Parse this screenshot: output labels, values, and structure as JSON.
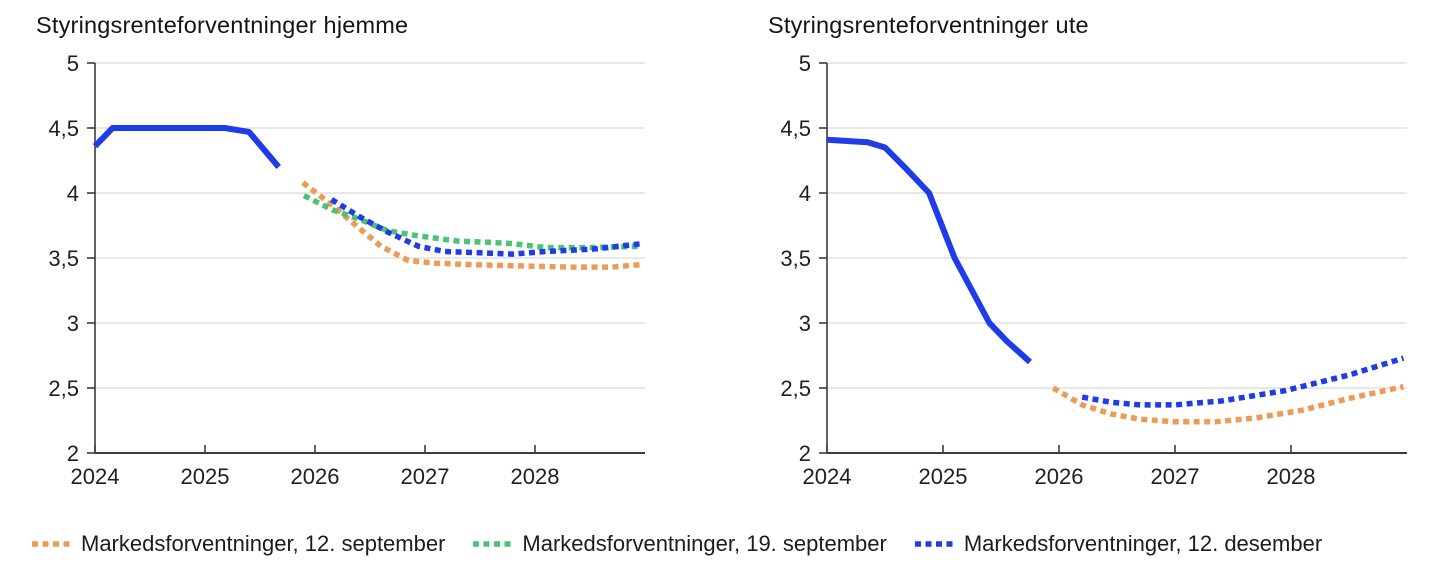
{
  "page": {
    "background": "#ffffff"
  },
  "colors": {
    "blue": "#1e3ce8",
    "orange": "#ec9c56",
    "green": "#4ac378",
    "grid": "#d9d9d9",
    "axis": "#3c3c3c",
    "text": "#1f1f1f"
  },
  "legend": {
    "items": [
      {
        "label": "Markedsforventninger, 12. september",
        "color": "#ec9c56",
        "style": "dotted"
      },
      {
        "label": "Markedsforventninger, 19. september",
        "color": "#4ac378",
        "style": "dotted"
      },
      {
        "label": "Markedsforventninger, 12. desember",
        "color": "#1e3ce8",
        "style": "dotted"
      }
    ]
  },
  "chart_data": [
    {
      "type": "line",
      "title": "Styringsrenteforventninger hjemme",
      "xlabel": "",
      "ylabel": "",
      "xlim": [
        2024,
        2029
      ],
      "ylim": [
        2,
        5
      ],
      "grid": "horizontal",
      "legend_position": "bottom",
      "x_ticks": [
        {
          "value": 2024,
          "label": "2024"
        },
        {
          "value": 2025,
          "label": "2025"
        },
        {
          "value": 2026,
          "label": "2026"
        },
        {
          "value": 2027,
          "label": "2027"
        },
        {
          "value": 2028,
          "label": "2028"
        }
      ],
      "y_ticks": [
        {
          "value": 2,
          "label": "2"
        },
        {
          "value": 2.5,
          "label": "2,5"
        },
        {
          "value": 3,
          "label": "3"
        },
        {
          "value": 3.5,
          "label": "3,5"
        },
        {
          "value": 4,
          "label": "4"
        },
        {
          "value": 4.5,
          "label": "4,5"
        },
        {
          "value": 5,
          "label": "5"
        }
      ],
      "series": [
        {
          "id": "markedsforventninger-12-september",
          "legend_label": "Markedsforventninger, 12. september",
          "color": "#ec9c56",
          "style": "dotted",
          "points": [
            [
              2025.89,
              4.08
            ],
            [
              2026.15,
              3.91
            ],
            [
              2026.36,
              3.76
            ],
            [
              2026.6,
              3.59
            ],
            [
              2026.85,
              3.48
            ],
            [
              2027.1,
              3.46
            ],
            [
              2027.4,
              3.45
            ],
            [
              2027.8,
              3.44
            ],
            [
              2028.3,
              3.43
            ],
            [
              2028.7,
              3.43
            ],
            [
              2028.97,
              3.45
            ]
          ]
        },
        {
          "id": "markedsforventninger-19-september",
          "legend_label": "Markedsforventninger, 19. september",
          "color": "#4ac378",
          "style": "dotted",
          "points": [
            [
              2025.9,
              3.98
            ],
            [
              2026.16,
              3.87
            ],
            [
              2026.4,
              3.8
            ],
            [
              2026.66,
              3.71
            ],
            [
              2026.94,
              3.67
            ],
            [
              2027.3,
              3.63
            ],
            [
              2027.6,
              3.62
            ],
            [
              2027.8,
              3.61
            ],
            [
              2028.1,
              3.58
            ],
            [
              2028.45,
              3.58
            ],
            [
              2028.97,
              3.59
            ]
          ]
        },
        {
          "id": "markedsforventninger-12-desember",
          "legend_label": "Markedsforventninger, 12. desember",
          "color": "#1e3ce8",
          "style": "dotted",
          "points": [
            [
              2026.15,
              3.95
            ],
            [
              2026.4,
              3.82
            ],
            [
              2026.66,
              3.7
            ],
            [
              2026.94,
              3.59
            ],
            [
              2027.18,
              3.55
            ],
            [
              2027.5,
              3.54
            ],
            [
              2027.8,
              3.53
            ],
            [
              2028.1,
              3.55
            ],
            [
              2028.55,
              3.57
            ],
            [
              2028.97,
              3.61
            ]
          ]
        },
        {
          "id": "solid-line",
          "legend_label": null,
          "color": "#1e3ce8",
          "style": "solid",
          "points": [
            [
              2024.0,
              4.36
            ],
            [
              2024.16,
              4.5
            ],
            [
              2025.18,
              4.5
            ],
            [
              2025.4,
              4.47
            ],
            [
              2025.67,
              4.2
            ]
          ]
        }
      ]
    },
    {
      "type": "line",
      "title": "Styringsrenteforventninger ute",
      "xlabel": "",
      "ylabel": "",
      "xlim": [
        2024,
        2029
      ],
      "ylim": [
        2,
        5
      ],
      "grid": "horizontal",
      "legend_position": "bottom",
      "x_ticks": [
        {
          "value": 2024,
          "label": "2024"
        },
        {
          "value": 2025,
          "label": "2025"
        },
        {
          "value": 2026,
          "label": "2026"
        },
        {
          "value": 2027,
          "label": "2027"
        },
        {
          "value": 2028,
          "label": "2028"
        }
      ],
      "y_ticks": [
        {
          "value": 2,
          "label": "2"
        },
        {
          "value": 2.5,
          "label": "2,5"
        },
        {
          "value": 3,
          "label": "3"
        },
        {
          "value": 3.5,
          "label": "3,5"
        },
        {
          "value": 4,
          "label": "4"
        },
        {
          "value": 4.5,
          "label": "4,5"
        },
        {
          "value": 5,
          "label": "5"
        }
      ],
      "series": [
        {
          "id": "markedsforventninger-12-september",
          "legend_label": "Markedsforventninger, 12. september",
          "color": "#ec9c56",
          "style": "dotted",
          "points": [
            [
              2025.95,
              2.5
            ],
            [
              2026.2,
              2.37
            ],
            [
              2026.45,
              2.3
            ],
            [
              2026.7,
              2.26
            ],
            [
              2027.0,
              2.24
            ],
            [
              2027.35,
              2.24
            ],
            [
              2027.7,
              2.27
            ],
            [
              2028.1,
              2.33
            ],
            [
              2028.5,
              2.42
            ],
            [
              2028.97,
              2.51
            ]
          ]
        },
        {
          "id": "markedsforventninger-12-desember",
          "legend_label": "Markedsforventninger, 12. desember",
          "color": "#1e3ce8",
          "style": "dotted",
          "points": [
            [
              2026.2,
              2.43
            ],
            [
              2026.45,
              2.39
            ],
            [
              2026.7,
              2.37
            ],
            [
              2027.0,
              2.37
            ],
            [
              2027.4,
              2.4
            ],
            [
              2027.95,
              2.48
            ],
            [
              2028.5,
              2.6
            ],
            [
              2028.97,
              2.73
            ]
          ]
        },
        {
          "id": "solid-line",
          "legend_label": null,
          "color": "#1e3ce8",
          "style": "solid",
          "points": [
            [
              2024.0,
              4.41
            ],
            [
              2024.35,
              4.39
            ],
            [
              2024.5,
              4.35
            ],
            [
              2024.7,
              4.17
            ],
            [
              2024.88,
              4.0
            ],
            [
              2025.1,
              3.5
            ],
            [
              2025.4,
              3.0
            ],
            [
              2025.55,
              2.86
            ],
            [
              2025.75,
              2.7
            ]
          ]
        }
      ]
    }
  ]
}
